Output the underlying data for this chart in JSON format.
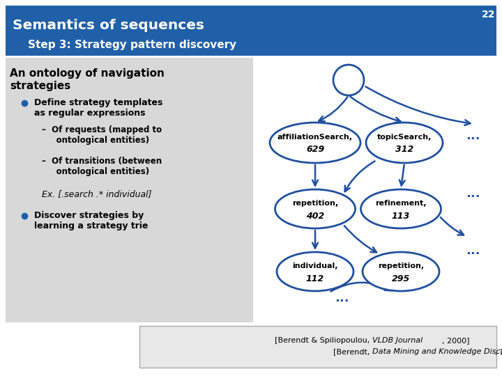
{
  "title": "Semantics of sequences",
  "slide_num": "22",
  "subtitle": "Step 3: Strategy pattern discovery",
  "header_color": "#2060A8",
  "header_text_color": "#FFFFFF",
  "bg_color": "#FFFFFF",
  "content_bg": "#D8D8D8",
  "bullet_color": "#1F5FA6",
  "ontology_title": "An ontology of navigation\nstrategies",
  "bullet1_text1": "Define strategy templates",
  "bullet1_text2": "as regular expressions",
  "sub1_text1": "Of requests (mapped to",
  "sub1_text2": "ontological entities)",
  "sub2_text1": "Of transitions (between",
  "sub2_text2": "ontological entities)",
  "example_text": "Ex. [.search .* individual]",
  "bullet2_text1": "Discover strategies by",
  "bullet2_text2": "learning a strategy trie",
  "node_color": "#FFFFFF",
  "node_edge_color": "#1F4F9F",
  "arrow_color": "#1F4F9F",
  "ref_bg": "#E8E8E8",
  "ref_border": "#AAAAAA"
}
